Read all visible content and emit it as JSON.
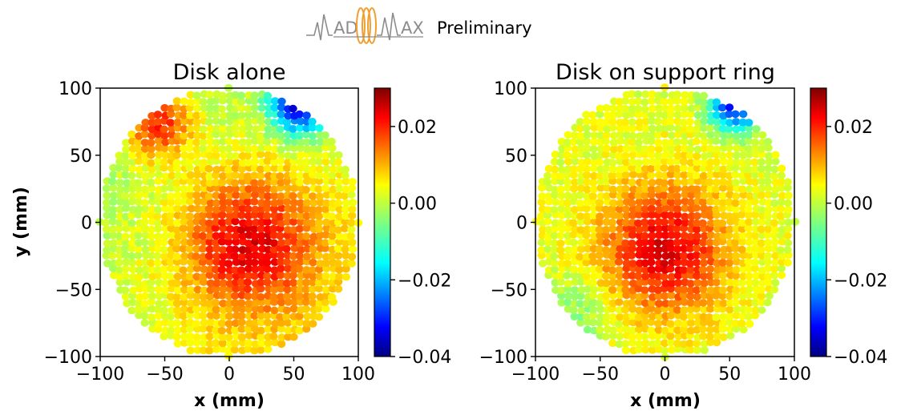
{
  "header": {
    "logo_text": "MADMAX",
    "label": "Preliminary"
  },
  "colors": {
    "colormap": "jet",
    "logo_gray": "#8c8c8c",
    "logo_orange": "#f0a030"
  },
  "chart_data": [
    {
      "type": "heatmap",
      "title": "Disk alone",
      "xlabel": "x (mm)",
      "ylabel": "y (mm)",
      "xlim": [
        -100,
        100
      ],
      "ylim": [
        -100,
        100
      ],
      "x_ticks": [
        "−100",
        "−50",
        "0",
        "50",
        "100"
      ],
      "y_ticks": [
        "−100",
        "−50",
        "0",
        "50",
        "100"
      ],
      "domain": "disk of radius 100 mm",
      "colorbar": {
        "range": [
          -0.04,
          0.03
        ],
        "ticks": [
          "−0.04",
          "−0.02",
          "0.00",
          "0.02"
        ],
        "colormap": "jet"
      },
      "features": [
        {
          "x": 15,
          "y": -15,
          "value": 0.02,
          "extent": "broad central maximum"
        },
        {
          "x": -55,
          "y": 75,
          "value": 0.022,
          "extent": "upper-left hot edge"
        },
        {
          "x": 55,
          "y": 85,
          "value": -0.03,
          "extent": "upper-right cold edge"
        }
      ]
    },
    {
      "type": "heatmap",
      "title": "Disk on support ring",
      "xlabel": "x (mm)",
      "ylabel": "",
      "xlim": [
        -100,
        100
      ],
      "ylim": [
        -100,
        100
      ],
      "x_ticks": [
        "−100",
        "−50",
        "0",
        "50",
        "100"
      ],
      "y_ticks": [
        "−100",
        "−50",
        "0",
        "50",
        "100"
      ],
      "domain": "disk of radius 100 mm",
      "colorbar": {
        "range": [
          -0.04,
          0.03
        ],
        "ticks": [
          "−0.04",
          "−0.02",
          "0.00",
          "0.02"
        ],
        "colormap": "jet"
      },
      "features": [
        {
          "x": 0,
          "y": -20,
          "value": 0.022,
          "extent": "central maximum"
        },
        {
          "x": 55,
          "y": 88,
          "value": -0.028,
          "extent": "upper-right cold edge"
        }
      ]
    }
  ]
}
